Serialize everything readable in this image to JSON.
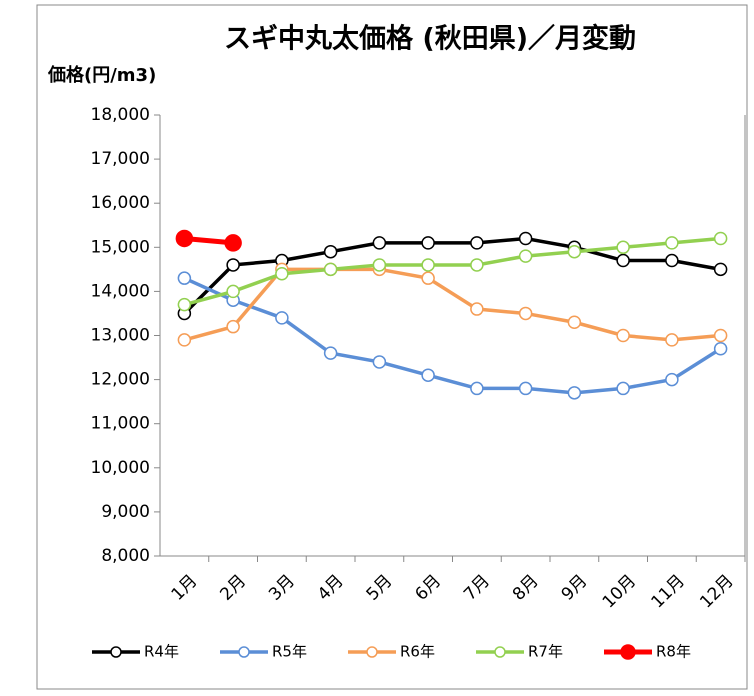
{
  "chart_data": {
    "type": "line",
    "title": "スギ中丸太価格 (秋田県)／月変動",
    "y_label": "価格(円/m3)",
    "categories": [
      "1月",
      "2月",
      "3月",
      "4月",
      "5月",
      "6月",
      "7月",
      "8月",
      "9月",
      "10月",
      "11月",
      "12月"
    ],
    "ylim": [
      8000,
      18000
    ],
    "yticks": [
      {
        "value": 8000,
        "label": "8,000"
      },
      {
        "value": 9000,
        "label": "9,000"
      },
      {
        "value": 10000,
        "label": "10,000"
      },
      {
        "value": 11000,
        "label": "11,000"
      },
      {
        "value": 12000,
        "label": "12,000"
      },
      {
        "value": 13000,
        "label": "13,000"
      },
      {
        "value": 14000,
        "label": "14,000"
      },
      {
        "value": 15000,
        "label": "15,000"
      },
      {
        "value": 16000,
        "label": "16,000"
      },
      {
        "value": 17000,
        "label": "17,000"
      },
      {
        "value": 18000,
        "label": "18,000"
      }
    ],
    "grid": false,
    "legend": "bottom",
    "series": [
      {
        "name": "R4年",
        "color": "#000000",
        "marker_fill": "#FFFFFF",
        "values": [
          13500,
          14600,
          14700,
          14900,
          15100,
          15100,
          15100,
          15200,
          15000,
          14700,
          14700,
          14500
        ]
      },
      {
        "name": "R5年",
        "color": "#5B8ED6",
        "marker_fill": "#FFFFFF",
        "values": [
          14300,
          13800,
          13400,
          12600,
          12400,
          12100,
          11800,
          11800,
          11700,
          11800,
          12000,
          12700
        ]
      },
      {
        "name": "R6年",
        "color": "#F59D56",
        "marker_fill": "#FFFFFF",
        "values": [
          12900,
          13200,
          14500,
          14500,
          14500,
          14300,
          13600,
          13500,
          13300,
          13000,
          12900,
          13000
        ]
      },
      {
        "name": "R7年",
        "color": "#92D050",
        "marker_fill": "#FFFFFF",
        "values": [
          13700,
          14000,
          14400,
          14500,
          14600,
          14600,
          14600,
          14800,
          14900,
          15000,
          15100,
          15200
        ]
      },
      {
        "name": "R8年",
        "color": "#FF0000",
        "marker_fill": "#FF0000",
        "values": [
          15200,
          15100,
          null,
          null,
          null,
          null,
          null,
          null,
          null,
          null,
          null,
          null
        ]
      }
    ]
  }
}
